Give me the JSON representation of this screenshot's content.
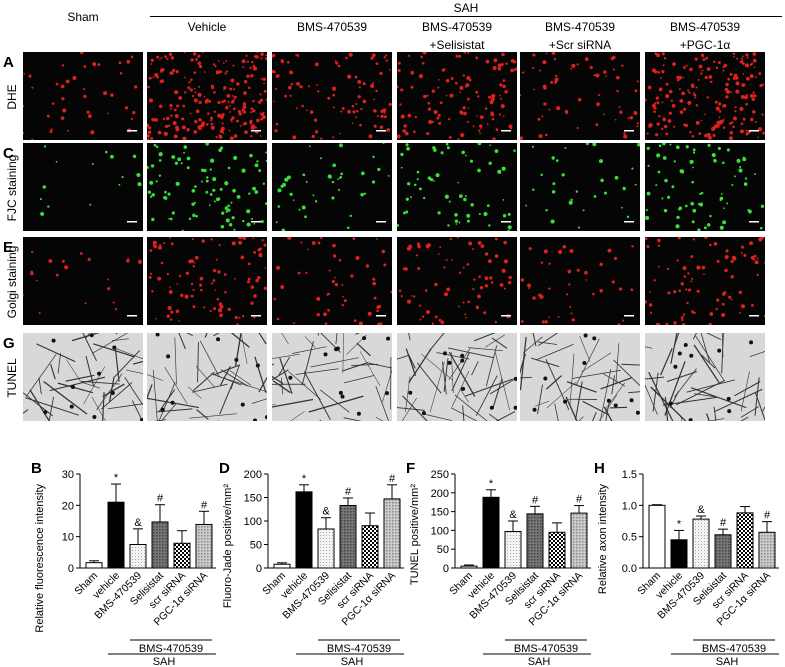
{
  "header": {
    "sah_label": "SAH",
    "columns": [
      "Sham",
      "Vehicle",
      "BMS-470539",
      "BMS-470539",
      "BMS-470539",
      "BMS-470539"
    ],
    "column_sublabels": [
      "",
      "",
      "",
      "+Selisistat",
      "+Scr siRNA",
      "+PGC-1α"
    ]
  },
  "rows": [
    {
      "letter": "A",
      "label": "DHE",
      "stain": "red",
      "color": "#e0201c"
    },
    {
      "letter": "C",
      "label": "FJC staining",
      "stain": "green",
      "color": "#38e038"
    },
    {
      "letter": "E",
      "label": "Golgi staining",
      "stain": "red",
      "color": "#e0201c"
    },
    {
      "letter": "G",
      "label": "TUNEL",
      "stain": "gray",
      "color": "#222222"
    }
  ],
  "group_labels": {
    "inner": "BMS-470539",
    "outer": "SAH"
  },
  "chart_data": [
    {
      "type": "bar",
      "letter": "B",
      "ylabel": "Relative fluorescence intensity",
      "ylim": [
        0,
        30
      ],
      "yticks": [
        0,
        10,
        20,
        30
      ],
      "categories": [
        "Sham",
        "vehicle",
        "BMS-470539",
        "Selisistat",
        "scr siRNA",
        "PGC-1α siRNA"
      ],
      "values": [
        1.7,
        21,
        7.5,
        14.7,
        7.9,
        13.9
      ],
      "errors": [
        0.6,
        5.8,
        5,
        5.5,
        4,
        4.2
      ],
      "annotations": [
        "",
        "*",
        "&",
        "#",
        "",
        "#"
      ]
    },
    {
      "type": "bar",
      "letter": "D",
      "ylabel": "Fluoro-Jade positive/mm²",
      "ylim": [
        0,
        200
      ],
      "yticks": [
        0,
        50,
        100,
        150,
        200
      ],
      "categories": [
        "Sham",
        "vehicle",
        "BMS-470539",
        "Selisistat",
        "scr siRNA",
        "PGC-1α siRNA"
      ],
      "values": [
        8,
        162,
        83,
        133,
        90,
        147
      ],
      "errors": [
        3,
        15,
        24,
        16,
        27,
        30
      ],
      "annotations": [
        "",
        "*",
        "&",
        "#",
        "",
        "#"
      ]
    },
    {
      "type": "bar",
      "letter": "F",
      "ylabel": "TUNEL positive/mm²",
      "ylim": [
        0,
        250
      ],
      "yticks": [
        0,
        50,
        100,
        150,
        200,
        250
      ],
      "categories": [
        "Sham",
        "vehicle",
        "BMS-470539",
        "Selisistat",
        "scr siRNA",
        "PGC-1α siRNA"
      ],
      "values": [
        5,
        188,
        97,
        144,
        95,
        146
      ],
      "errors": [
        3,
        20,
        28,
        20,
        25,
        20
      ],
      "annotations": [
        "",
        "*",
        "&",
        "#",
        "",
        "#"
      ]
    },
    {
      "type": "bar",
      "letter": "H",
      "ylabel": "Relative axon intensity",
      "ylim": [
        0,
        1.5
      ],
      "yticks": [
        "0.0",
        "0.5",
        "1.0",
        "1.5"
      ],
      "categories": [
        "Sham",
        "vehicle",
        "BMS-470539",
        "Selisistat",
        "scr siRNA",
        "PGC-1α siRNA"
      ],
      "values": [
        1.0,
        0.45,
        0.78,
        0.53,
        0.88,
        0.57
      ],
      "errors": [
        0.01,
        0.15,
        0.05,
        0.09,
        0.1,
        0.17
      ],
      "annotations": [
        "",
        "*",
        "&",
        "#",
        "",
        "#"
      ]
    }
  ]
}
